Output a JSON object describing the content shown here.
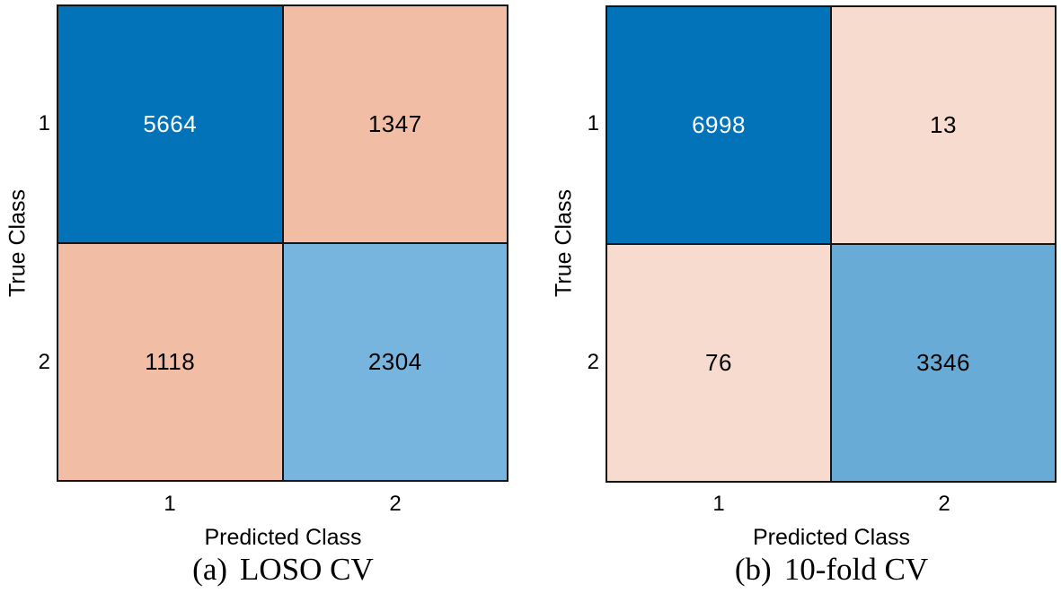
{
  "figure": {
    "background": "#ffffff",
    "gridline_color": "#141414",
    "text_color": "#000000"
  },
  "chart_data": [
    {
      "type": "heatmap",
      "subtype": "confusion-matrix",
      "caption_prefix": "(a)",
      "caption_text": "LOSO CV",
      "xlabel": "Predicted Class",
      "ylabel": "True Class",
      "x_tick_labels": [
        "1",
        "2"
      ],
      "y_tick_labels": [
        "1",
        "2"
      ],
      "values": [
        [
          5664,
          1347
        ],
        [
          1118,
          2304
        ]
      ],
      "cells": [
        {
          "value": "5664",
          "bg": "#0272b9",
          "fg": "#ffffff"
        },
        {
          "value": "1347",
          "bg": "#f1bda4",
          "fg": "#000000"
        },
        {
          "value": "1118",
          "bg": "#f1bda4",
          "fg": "#000000"
        },
        {
          "value": "2304",
          "bg": "#77b4de",
          "fg": "#000000"
        }
      ]
    },
    {
      "type": "heatmap",
      "subtype": "confusion-matrix",
      "caption_prefix": "(b)",
      "caption_text": "10-fold CV",
      "xlabel": "Predicted Class",
      "ylabel": "True Class",
      "x_tick_labels": [
        "1",
        "2"
      ],
      "y_tick_labels": [
        "1",
        "2"
      ],
      "values": [
        [
          6998,
          13
        ],
        [
          76,
          3346
        ]
      ],
      "cells": [
        {
          "value": "6998",
          "bg": "#0272b9",
          "fg": "#ffffff"
        },
        {
          "value": "13",
          "bg": "#f7dbce",
          "fg": "#000000"
        },
        {
          "value": "76",
          "bg": "#f7dbce",
          "fg": "#000000"
        },
        {
          "value": "3346",
          "bg": "#69abd7",
          "fg": "#000000"
        }
      ]
    }
  ]
}
